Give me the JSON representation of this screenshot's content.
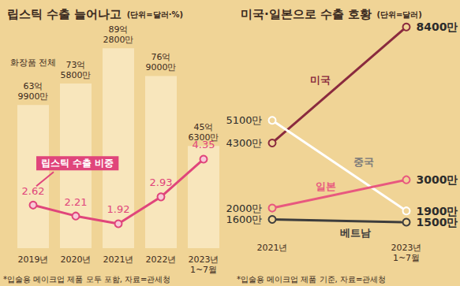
{
  "chart_data": [
    {
      "type": "bar",
      "title": "립스틱 수출 늘어나고",
      "subtitle": "(단위=달러·%)",
      "categories": [
        "2019년",
        "2020년",
        "2021년",
        "2022년",
        "2023년\n1~7월"
      ],
      "series": [
        {
          "name": "화장품 전체",
          "type": "bar",
          "color": "#f8e6bc",
          "values": [
            6399000000,
            7358000000,
            8928000000,
            7690000000,
            4563000000
          ],
          "value_labels": [
            "63억\n9900만",
            "73억\n5800만",
            "89억\n2800만",
            "76억\n9000만",
            "45억\n6300만"
          ]
        },
        {
          "name": "립스틱 수출 비중",
          "type": "line",
          "axis": "y2",
          "color": "#e0457b",
          "marker": "circle",
          "values": [
            2.62,
            2.21,
            1.92,
            2.93,
            4.35
          ]
        }
      ],
      "ylim": [
        0,
        9500000000
      ],
      "y2lim": [
        1,
        9
      ],
      "data_labels": true,
      "tick_labels": "x",
      "grid": false,
      "footnote": "*입술용 메이크업 제품 모두 포함, 자료=관세청"
    },
    {
      "type": "line",
      "title": "미국·일본으로 수출 호황",
      "subtitle": "(단위=달러)",
      "categories": [
        "2021년",
        "2023년\n1~7월"
      ],
      "series": [
        {
          "name": "미국",
          "color": "#8a2a3e",
          "values": [
            43000000,
            84000000
          ],
          "value_labels": [
            "4300만",
            "8400만"
          ]
        },
        {
          "name": "중국",
          "color": "#ffffff",
          "values": [
            51000000,
            19000000
          ],
          "value_labels": [
            "5100만",
            "1900만"
          ]
        },
        {
          "name": "일본",
          "color": "#e8587f",
          "values": [
            20000000,
            30000000
          ],
          "value_labels": [
            "2000만",
            "3000만"
          ]
        },
        {
          "name": "베트남",
          "color": "#3d3d3d",
          "values": [
            16000000,
            15000000
          ],
          "value_labels": [
            "1600만",
            "1500만"
          ]
        }
      ],
      "ylim": [
        10000000,
        86000000
      ],
      "data_labels": true,
      "marker": "circle",
      "tick_labels": "x",
      "grid": false,
      "footnote": "*입술용 메이크업 제품 기준, 자료=관세청"
    }
  ]
}
